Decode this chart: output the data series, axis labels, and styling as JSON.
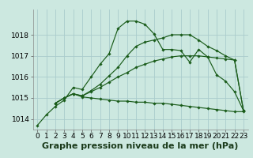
{
  "xlabel": "Graphe pression niveau de la mer (hPa)",
  "bg_color": "#cce8e0",
  "grid_color": "#aacccc",
  "line_color": "#1a5c1a",
  "ylim": [
    1013.5,
    1019.2
  ],
  "xlim": [
    -0.5,
    23.5
  ],
  "yticks": [
    1014,
    1015,
    1016,
    1017,
    1018
  ],
  "xticks": [
    0,
    1,
    2,
    3,
    4,
    5,
    6,
    7,
    8,
    9,
    10,
    11,
    12,
    13,
    14,
    15,
    16,
    17,
    18,
    19,
    20,
    21,
    22,
    23
  ],
  "series": [
    {
      "x": [
        0,
        1,
        2,
        3,
        4,
        5,
        6,
        7,
        8,
        9,
        10,
        11,
        12,
        13,
        14,
        15,
        16,
        17,
        18,
        19,
        20,
        21,
        22,
        23
      ],
      "y": [
        1013.7,
        1014.2,
        1014.6,
        1014.9,
        1015.5,
        1015.4,
        1016.0,
        1016.6,
        1017.1,
        1018.3,
        1018.65,
        1018.65,
        1018.5,
        1018.05,
        1017.3,
        1017.3,
        1017.25,
        1016.7,
        1017.3,
        1016.95,
        1016.1,
        1015.8,
        1015.3,
        1014.4
      ]
    },
    {
      "x": [
        2,
        3,
        4,
        5,
        6,
        7,
        8,
        9,
        10,
        11,
        12,
        13,
        14,
        15,
        16,
        17,
        18,
        19,
        20,
        21,
        22,
        23
      ],
      "y": [
        1014.75,
        1015.0,
        1015.2,
        1015.05,
        1015.0,
        1014.95,
        1014.9,
        1014.85,
        1014.85,
        1014.8,
        1014.8,
        1014.75,
        1014.75,
        1014.7,
        1014.65,
        1014.6,
        1014.55,
        1014.5,
        1014.45,
        1014.4,
        1014.35,
        1014.35
      ]
    },
    {
      "x": [
        2,
        3,
        4,
        5,
        6,
        7,
        8,
        9,
        10,
        11,
        12,
        13,
        14,
        15,
        16,
        17,
        18,
        19,
        20,
        21,
        22,
        23
      ],
      "y": [
        1014.75,
        1015.0,
        1015.2,
        1015.1,
        1015.3,
        1015.5,
        1015.75,
        1016.0,
        1016.2,
        1016.45,
        1016.6,
        1016.75,
        1016.85,
        1016.95,
        1017.0,
        1017.0,
        1017.0,
        1016.95,
        1016.9,
        1016.85,
        1016.8,
        1014.4
      ]
    },
    {
      "x": [
        2,
        3,
        4,
        5,
        6,
        7,
        8,
        9,
        10,
        11,
        12,
        13,
        14,
        15,
        16,
        17,
        18,
        19,
        20,
        21,
        22,
        23
      ],
      "y": [
        1014.75,
        1015.0,
        1015.2,
        1015.1,
        1015.35,
        1015.65,
        1016.05,
        1016.45,
        1017.0,
        1017.45,
        1017.65,
        1017.75,
        1017.85,
        1018.0,
        1018.0,
        1018.0,
        1017.75,
        1017.45,
        1017.25,
        1017.0,
        1016.8,
        1014.4
      ]
    }
  ],
  "xlabel_fontsize": 8,
  "tick_fontsize": 6.5,
  "marker": "D",
  "markersize": 1.8,
  "linewidth": 0.85
}
